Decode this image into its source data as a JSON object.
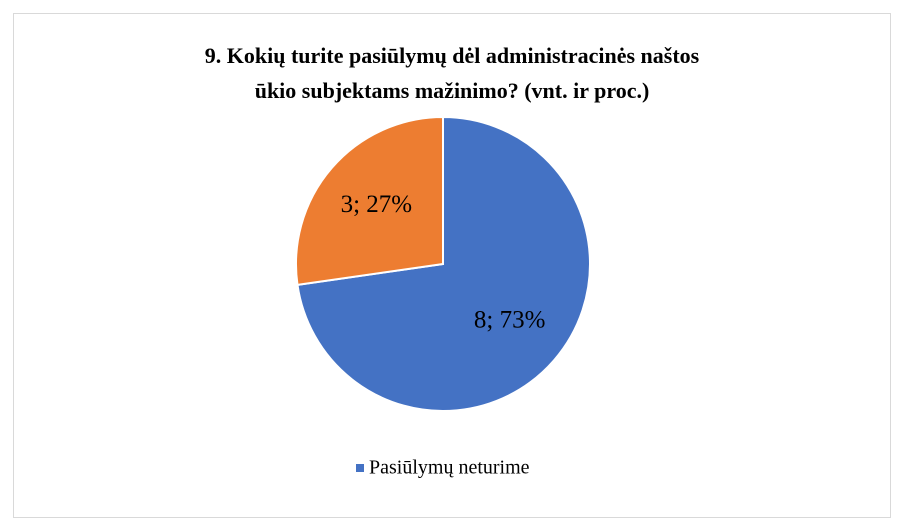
{
  "chart_data": {
    "type": "pie",
    "title": [
      "9. Kokių turite pasiūlymų dėl administracinės naštos",
      "ūkio subjektams mažinimo? (vnt. ir proc.)"
    ],
    "categories": [
      "Pasiūlymų neturime",
      null
    ],
    "values": [
      8,
      3
    ],
    "value_labels": [
      "8; 73%",
      "3; 27%"
    ],
    "colors": [
      "#4472c4",
      "#ed7d31"
    ],
    "legend": "bottom"
  }
}
